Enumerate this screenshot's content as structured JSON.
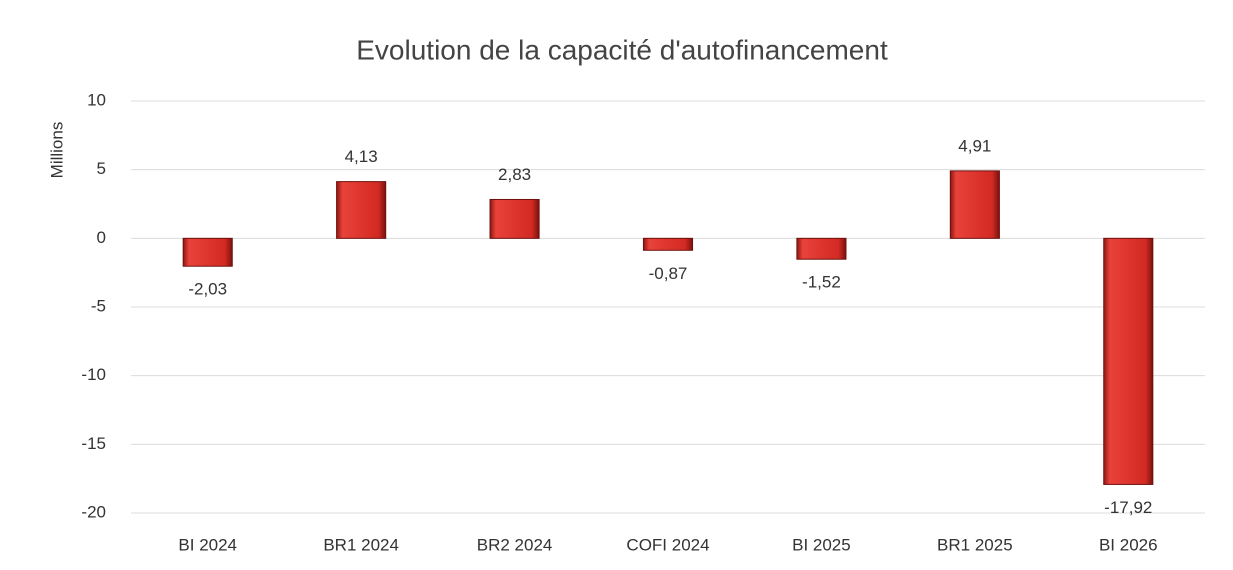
{
  "chart_data": {
    "type": "bar",
    "title": "Evolution de la capacité d'autofinancement",
    "y_label": "Millions",
    "categories": [
      "BI 2024",
      "BR1 2024",
      "BR2 2024",
      "COFI 2024",
      "BI 2025",
      "BR1 2025",
      "BI 2026"
    ],
    "values": [
      -2.03,
      4.13,
      2.83,
      -0.87,
      -1.52,
      4.91,
      -17.92
    ],
    "value_labels": [
      "-2,03",
      "4,13",
      "2,83",
      "-0,87",
      "-1,52",
      "4,91",
      "-17,92"
    ],
    "color": "#d9302a",
    "ylim": [
      -20,
      10
    ],
    "yticks": [
      -20,
      -15,
      -10,
      -5,
      0,
      5,
      10
    ],
    "grid": true
  }
}
